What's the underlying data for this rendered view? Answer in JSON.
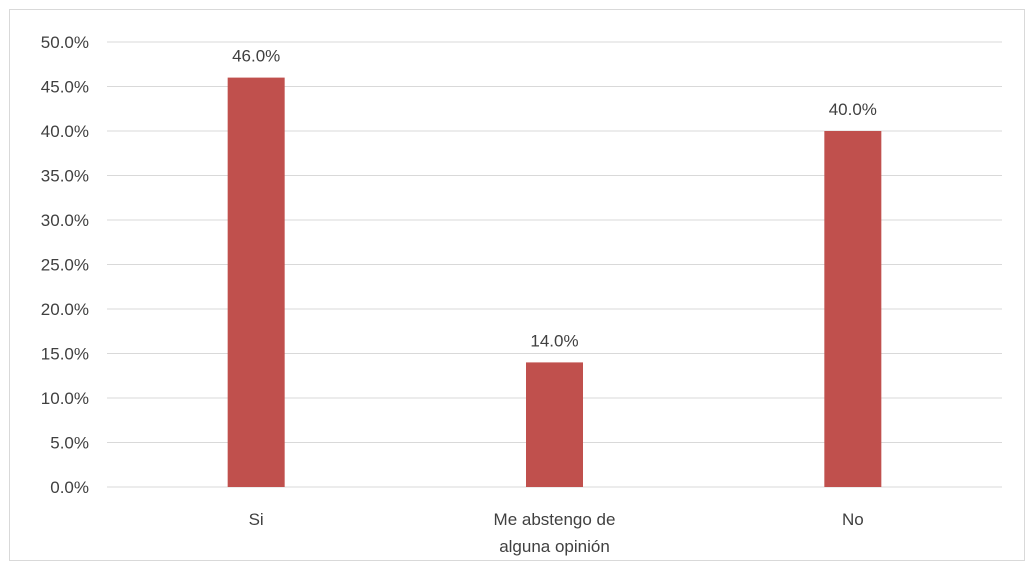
{
  "chart_data": {
    "type": "bar",
    "categories": [
      "Si",
      "Me abstengo de\nalguna opinión",
      "No"
    ],
    "values": [
      46.0,
      14.0,
      40.0
    ],
    "value_labels": [
      "46.0%",
      "14.0%",
      "40.0%"
    ],
    "ylim": [
      0,
      50
    ],
    "yticks": [
      "0.0%",
      "5.0%",
      "10.0%",
      "15.0%",
      "20.0%",
      "25.0%",
      "30.0%",
      "35.0%",
      "40.0%",
      "45.0%",
      "50.0%"
    ],
    "grid": true,
    "legend": "none",
    "colors": {
      "bar": "#c0504d",
      "grid": "#d9d9d9",
      "text": "#404040"
    }
  }
}
